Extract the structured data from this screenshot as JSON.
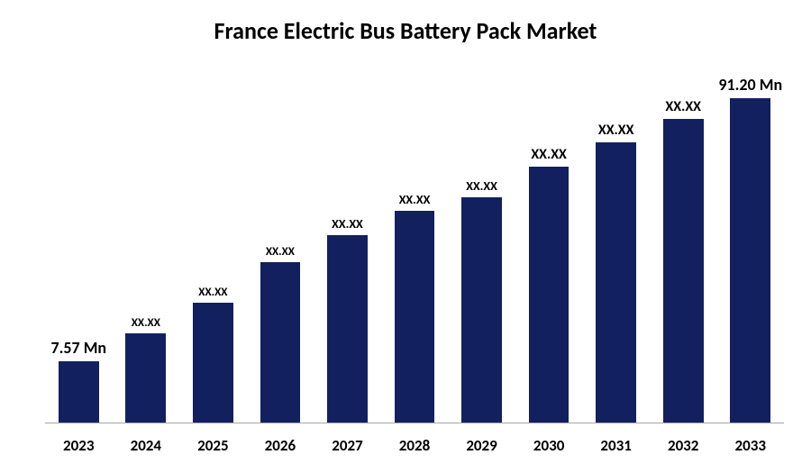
{
  "chart": {
    "type": "bar",
    "title": "France Electric Bus Battery Pack Market",
    "title_fontsize": 26,
    "title_color": "#000000",
    "background_color": "#ffffff",
    "bar_color": "#12205f",
    "axis_line_color": "#a6a6a6",
    "categories": [
      "2023",
      "2024",
      "2025",
      "2026",
      "2027",
      "2028",
      "2029",
      "2030",
      "2031",
      "2032",
      "2033"
    ],
    "values": [
      18,
      26,
      35,
      47,
      55,
      62,
      66,
      75,
      82,
      89,
      95
    ],
    "value_labels": [
      "7.57 Mn",
      "XX.XX",
      "XX.XX",
      "XX.XX",
      "XX.XX",
      "XX.XX",
      "XX.XX",
      "XX.XX",
      "XX.XX",
      "XX.XX",
      "91.20 Mn"
    ],
    "bar_width": 0.6,
    "ylim": [
      0,
      100
    ],
    "label_fontsizes": [
      18,
      13,
      13,
      13,
      14,
      14,
      14,
      16,
      16,
      16,
      18
    ],
    "label_fontweight": 700,
    "xlabel_fontsize": 17,
    "xlabel_fontweight": 700
  }
}
